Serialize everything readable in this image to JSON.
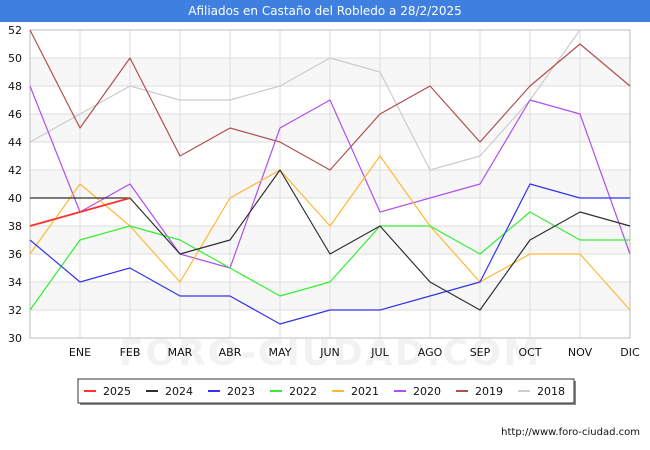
{
  "header": {
    "title": "Afiliados en Castaño del Robledo a 28/2/2025"
  },
  "footer": {
    "url": "http://www.foro-ciudad.com"
  },
  "watermark": "FORO-CIUDAD.COM",
  "chart_data": {
    "type": "line",
    "title": "Afiliados en Castaño del Robledo a 28/2/2025",
    "xlabel": "",
    "ylabel": "",
    "categories": [
      "",
      "ENE",
      "FEB",
      "MAR",
      "ABR",
      "MAY",
      "JUN",
      "JUL",
      "AGO",
      "SEP",
      "OCT",
      "NOV",
      "DIC"
    ],
    "ylim": [
      30,
      52
    ],
    "yticks": [
      30,
      32,
      34,
      36,
      38,
      40,
      42,
      44,
      46,
      48,
      50,
      52
    ],
    "grid": true,
    "legend_position": "bottom",
    "series": [
      {
        "name": "2025",
        "color": "#ff3030",
        "values": [
          38,
          39,
          40,
          null,
          null,
          null,
          null,
          null,
          null,
          null,
          null,
          null,
          null
        ]
      },
      {
        "name": "2024",
        "color": "#303030",
        "values": [
          40,
          40,
          40,
          36,
          37,
          42,
          36,
          38,
          34,
          32,
          37,
          39,
          38
        ]
      },
      {
        "name": "2023",
        "color": "#3333ee",
        "values": [
          37,
          34,
          35,
          33,
          33,
          31,
          32,
          32,
          33,
          34,
          41,
          40,
          40
        ]
      },
      {
        "name": "2022",
        "color": "#33ee33",
        "values": [
          32,
          37,
          38,
          37,
          35,
          33,
          34,
          38,
          38,
          36,
          39,
          37,
          37
        ]
      },
      {
        "name": "2021",
        "color": "#ffb833",
        "values": [
          36,
          41,
          38,
          34,
          40,
          42,
          38,
          43,
          38,
          34,
          36,
          36,
          32
        ]
      },
      {
        "name": "2020",
        "color": "#b050ee",
        "values": [
          48,
          39,
          41,
          36,
          35,
          45,
          47,
          39,
          40,
          41,
          47,
          46,
          36
        ]
      },
      {
        "name": "2019",
        "color": "#b05050",
        "values": [
          52,
          45,
          50,
          43,
          45,
          44,
          42,
          46,
          48,
          44,
          48,
          51,
          48
        ]
      },
      {
        "name": "2018",
        "color": "#cccccc",
        "values": [
          44,
          46,
          48,
          47,
          47,
          48,
          50,
          49,
          42,
          43,
          47,
          52,
          null
        ]
      }
    ]
  }
}
